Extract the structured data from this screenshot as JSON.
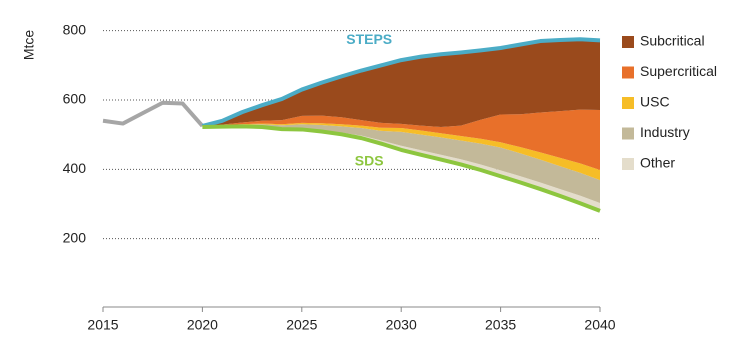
{
  "chart_data": {
    "type": "stacked-area",
    "y_label": "Mtce",
    "x": [
      2015,
      2016,
      2017,
      2018,
      2019,
      2020,
      2021,
      2022,
      2023,
      2024,
      2025,
      2026,
      2027,
      2028,
      2029,
      2030,
      2031,
      2032,
      2033,
      2034,
      2035,
      2036,
      2037,
      2038,
      2039,
      2040
    ],
    "xlim": [
      2015,
      2040
    ],
    "xticks": [
      2015,
      2020,
      2025,
      2030,
      2035,
      2040
    ],
    "ylim": [
      0,
      850
    ],
    "yticks": [
      200,
      400,
      600,
      800
    ],
    "grid": true,
    "legend": "right",
    "series": [
      {
        "name": "Subcritical",
        "color": "#9a4a1c",
        "values": [
          null,
          null,
          null,
          null,
          null,
          3,
          11,
          30,
          45,
          61,
          76,
          95,
          118,
          143,
          166,
          184,
          199,
          210,
          211,
          200,
          192,
          201,
          206,
          205,
          203,
          201
        ]
      },
      {
        "name": "Supercritical",
        "color": "#e8702a",
        "values": [
          null,
          null,
          null,
          null,
          null,
          0,
          2,
          5,
          8,
          12,
          20,
          22,
          20,
          16,
          14,
          12,
          14,
          18,
          30,
          55,
          80,
          95,
          115,
          135,
          155,
          173
        ]
      },
      {
        "name": "USC",
        "color": "#f6bd27",
        "values": [
          null,
          null,
          null,
          null,
          null,
          0,
          1,
          1,
          2,
          3,
          4,
          5,
          6,
          7,
          9,
          11,
          12,
          12,
          13,
          14,
          15,
          18,
          21,
          24,
          27,
          29
        ]
      },
      {
        "name": "Industry",
        "color": "#c3b999",
        "values": [
          null,
          null,
          null,
          null,
          null,
          0,
          2,
          4,
          6,
          9,
          12,
          15,
          18,
          22,
          28,
          40,
          45,
          50,
          54,
          60,
          66,
          66,
          66,
          66,
          66,
          66
        ]
      },
      {
        "name": "Other",
        "color": "#e4ddcb",
        "values": [
          null,
          null,
          null,
          null,
          null,
          0,
          1,
          1,
          2,
          2,
          3,
          4,
          5,
          7,
          9,
          12,
          13,
          14,
          15,
          16,
          17,
          18,
          19,
          20,
          22,
          23
        ]
      }
    ],
    "lines": [
      {
        "color": "#a6a6a6",
        "values": [
          540,
          532,
          562,
          592,
          590,
          525,
          null,
          null,
          null,
          null,
          null,
          null,
          null,
          null,
          null,
          null,
          null,
          null,
          null,
          null,
          null,
          null,
          null,
          null,
          null,
          null
        ]
      },
      {
        "label": "STEPS",
        "color": "#4bacc6",
        "values": [
          null,
          null,
          null,
          null,
          null,
          525,
          540,
          565,
          585,
          603,
          630,
          650,
          668,
          685,
          700,
          715,
          725,
          732,
          737,
          743,
          750,
          760,
          770,
          773,
          775,
          772
        ]
      },
      {
        "label": "SDS",
        "color": "#8dc63f",
        "values": [
          null,
          null,
          null,
          null,
          null,
          522,
          523,
          524,
          522,
          516,
          515,
          509,
          501,
          490,
          474,
          456,
          442,
          428,
          414,
          398,
          380,
          362,
          343,
          323,
          302,
          280
        ]
      }
    ]
  }
}
